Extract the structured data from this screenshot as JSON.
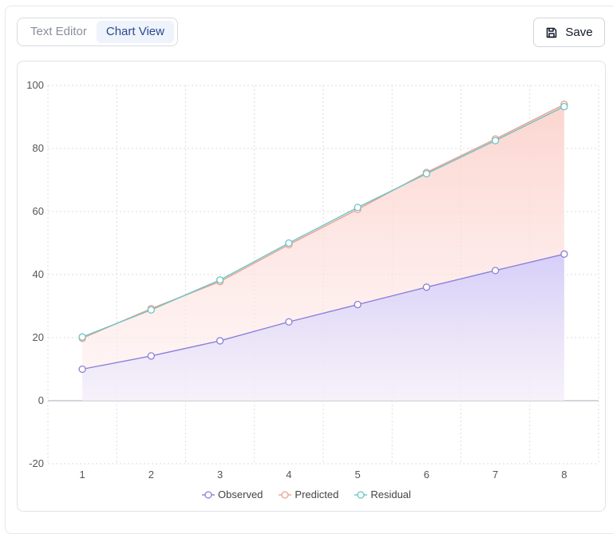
{
  "tabs": [
    {
      "label": "Text Editor",
      "active": false
    },
    {
      "label": "Chart View",
      "active": true
    }
  ],
  "toolbar": {
    "save_label": "Save",
    "save_icon": "floppy-disk-icon"
  },
  "chart_data": {
    "type": "area",
    "x": [
      1,
      2,
      3,
      4,
      5,
      6,
      7,
      8
    ],
    "ylim": [
      -20,
      100
    ],
    "yticks": [
      -20,
      0,
      20,
      40,
      60,
      80,
      100
    ],
    "xticks": [
      1,
      2,
      3,
      4,
      5,
      6,
      7,
      8
    ],
    "grid": true,
    "legend_position": "bottom",
    "series": [
      {
        "name": "Observed",
        "color": "#8b80d8",
        "fill": "#d9d4fb",
        "values": [
          10,
          14.2,
          19,
          25,
          30.5,
          36,
          41.3,
          46.5
        ]
      },
      {
        "name": "Predicted",
        "color": "#e8a292",
        "fill": "#fcd9d4",
        "values": [
          19.8,
          29.2,
          37.8,
          49.5,
          60.7,
          72.4,
          83,
          94
        ]
      },
      {
        "name": "Residual",
        "color": "#6cc4c4",
        "fill": "none",
        "values": [
          20.2,
          28.8,
          38.3,
          50,
          61.3,
          72,
          82.5,
          93.3
        ]
      }
    ]
  }
}
